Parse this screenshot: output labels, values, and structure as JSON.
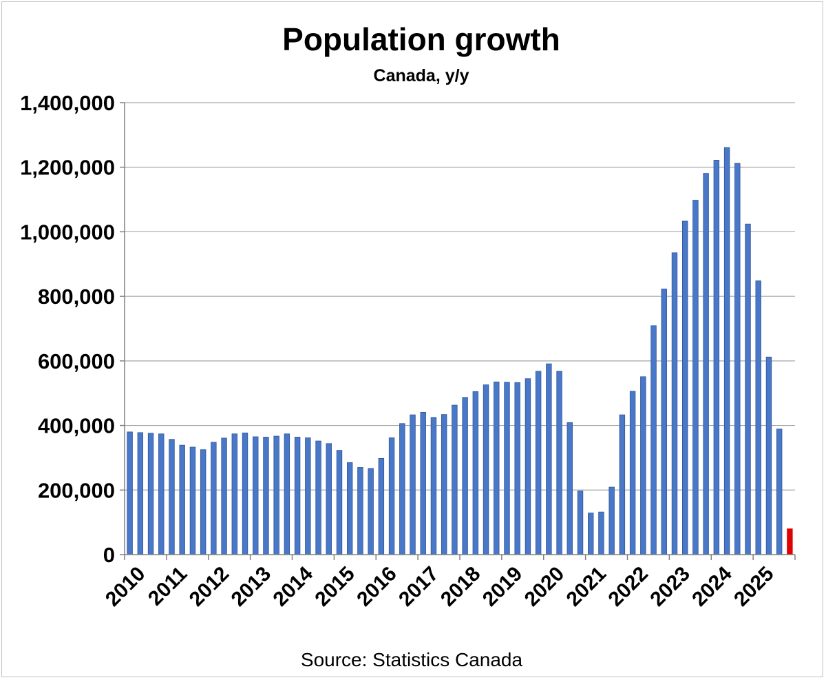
{
  "chart_data": {
    "type": "bar",
    "title": "Population growth",
    "subtitle": "Canada, y/y",
    "source": "Source: Statistics Canada",
    "xlabel": "",
    "ylabel": "",
    "ylim": [
      0,
      1400000
    ],
    "yticks": [
      0,
      200000,
      400000,
      600000,
      800000,
      1000000,
      1200000,
      1400000
    ],
    "ytick_labels": [
      "0",
      "200,000",
      "400,000",
      "600,000",
      "800,000",
      "1,000,000",
      "1,200,000",
      "1,400,000"
    ],
    "year_labels": [
      "2010",
      "2011",
      "2012",
      "2013",
      "2014",
      "2015",
      "2016",
      "2017",
      "2018",
      "2019",
      "2020",
      "2021",
      "2022",
      "2023",
      "2024",
      "2025"
    ],
    "grid": true,
    "colors": {
      "bar": "#4a78c8",
      "bar_edge": "#2f5597",
      "highlight": "#e00000",
      "grid": "#a6a6a6",
      "axis": "#808080"
    },
    "categories": [
      "2010 Q1",
      "2010 Q2",
      "2010 Q3",
      "2010 Q4",
      "2011 Q1",
      "2011 Q2",
      "2011 Q3",
      "2011 Q4",
      "2012 Q1",
      "2012 Q2",
      "2012 Q3",
      "2012 Q4",
      "2013 Q1",
      "2013 Q2",
      "2013 Q3",
      "2013 Q4",
      "2014 Q1",
      "2014 Q2",
      "2014 Q3",
      "2014 Q4",
      "2015 Q1",
      "2015 Q2",
      "2015 Q3",
      "2015 Q4",
      "2016 Q1",
      "2016 Q2",
      "2016 Q3",
      "2016 Q4",
      "2017 Q1",
      "2017 Q2",
      "2017 Q3",
      "2017 Q4",
      "2018 Q1",
      "2018 Q2",
      "2018 Q3",
      "2018 Q4",
      "2019 Q1",
      "2019 Q2",
      "2019 Q3",
      "2019 Q4",
      "2020 Q1",
      "2020 Q2",
      "2020 Q3",
      "2020 Q4",
      "2021 Q1",
      "2021 Q2",
      "2021 Q3",
      "2021 Q4",
      "2022 Q1",
      "2022 Q2",
      "2022 Q3",
      "2022 Q4",
      "2023 Q1",
      "2023 Q2",
      "2023 Q3",
      "2023 Q4",
      "2024 Q1",
      "2024 Q2",
      "2024 Q3",
      "2024 Q4",
      "2025 Q1",
      "2025 Q2",
      "2025 Q3",
      "2025 Q4"
    ],
    "values": [
      380000,
      378000,
      376000,
      374000,
      357000,
      339000,
      333000,
      325000,
      348000,
      361000,
      374000,
      377000,
      365000,
      364000,
      367000,
      374000,
      364000,
      362000,
      352000,
      344000,
      323000,
      285000,
      270000,
      267000,
      298000,
      362000,
      406000,
      433000,
      441000,
      425000,
      434000,
      463000,
      487000,
      505000,
      526000,
      535000,
      534000,
      533000,
      545000,
      568000,
      591000,
      568000,
      409000,
      197000,
      129000,
      132000,
      209000,
      433000,
      506000,
      551000,
      709000,
      823000,
      935000,
      1033000,
      1098000,
      1181000,
      1222000,
      1261000,
      1212000,
      1024000,
      848000,
      612000,
      389000,
      80000
    ],
    "highlight_index": 63
  }
}
